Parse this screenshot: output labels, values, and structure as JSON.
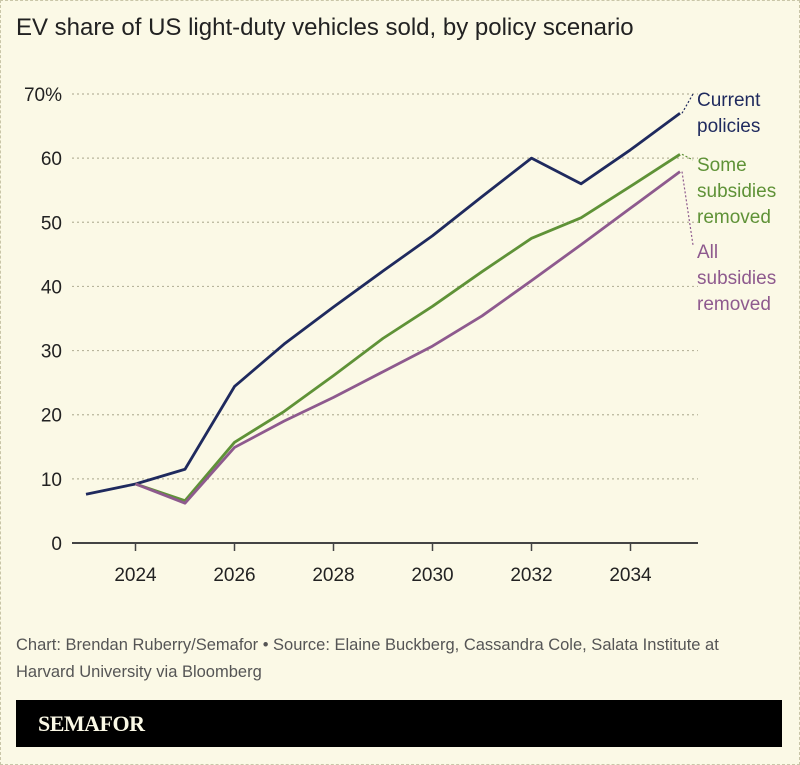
{
  "title": "EV share of US light-duty vehicles sold, by policy scenario",
  "source": "Chart: Brendan Ruberry/Semafor • Source: Elaine Buckberg, Cassandra Cole, Salata Institute at Harvard University via Bloomberg",
  "logo": "SEMAFOR",
  "chart_data": {
    "type": "line",
    "title": "EV share of US light-duty vehicles sold, by policy scenario",
    "x": [
      2023,
      2024,
      2025,
      2026,
      2027,
      2028,
      2029,
      2030,
      2031,
      2032,
      2033,
      2034,
      2035
    ],
    "xticks": [
      "2024",
      "2026",
      "2028",
      "2030",
      "2032",
      "2034"
    ],
    "yticks": [
      "0",
      "10",
      "20",
      "30",
      "40",
      "50",
      "60",
      "70%"
    ],
    "ylim": [
      0,
      70
    ],
    "xlim": [
      2023,
      2035
    ],
    "grid": true,
    "legend": "direct labels at line ends (right)",
    "series": [
      {
        "name": "Current policies",
        "label_lines": [
          "Current",
          "policies"
        ],
        "color": "#1f2a5e",
        "values": [
          7.6,
          9.2,
          11.5,
          24.4,
          31,
          36.8,
          42.4,
          47.9,
          54,
          60,
          56,
          61.3,
          67
        ]
      },
      {
        "name": "Some subsidies removed",
        "label_lines": [
          "Some",
          "subsidies",
          "removed"
        ],
        "color": "#5f9237",
        "values": [
          null,
          9.2,
          6.6,
          15.7,
          20.5,
          26.1,
          31.9,
          36.9,
          42.3,
          47.5,
          50.7,
          55.6,
          60.6
        ]
      },
      {
        "name": "All subsidies removed",
        "label_lines": [
          "All",
          "subsidies",
          "removed"
        ],
        "color": "#8e5a8e",
        "values": [
          null,
          9.2,
          6.2,
          14.9,
          19,
          22.7,
          26.7,
          30.7,
          35.4,
          40.9,
          46.5,
          52.2,
          57.9
        ]
      }
    ]
  }
}
